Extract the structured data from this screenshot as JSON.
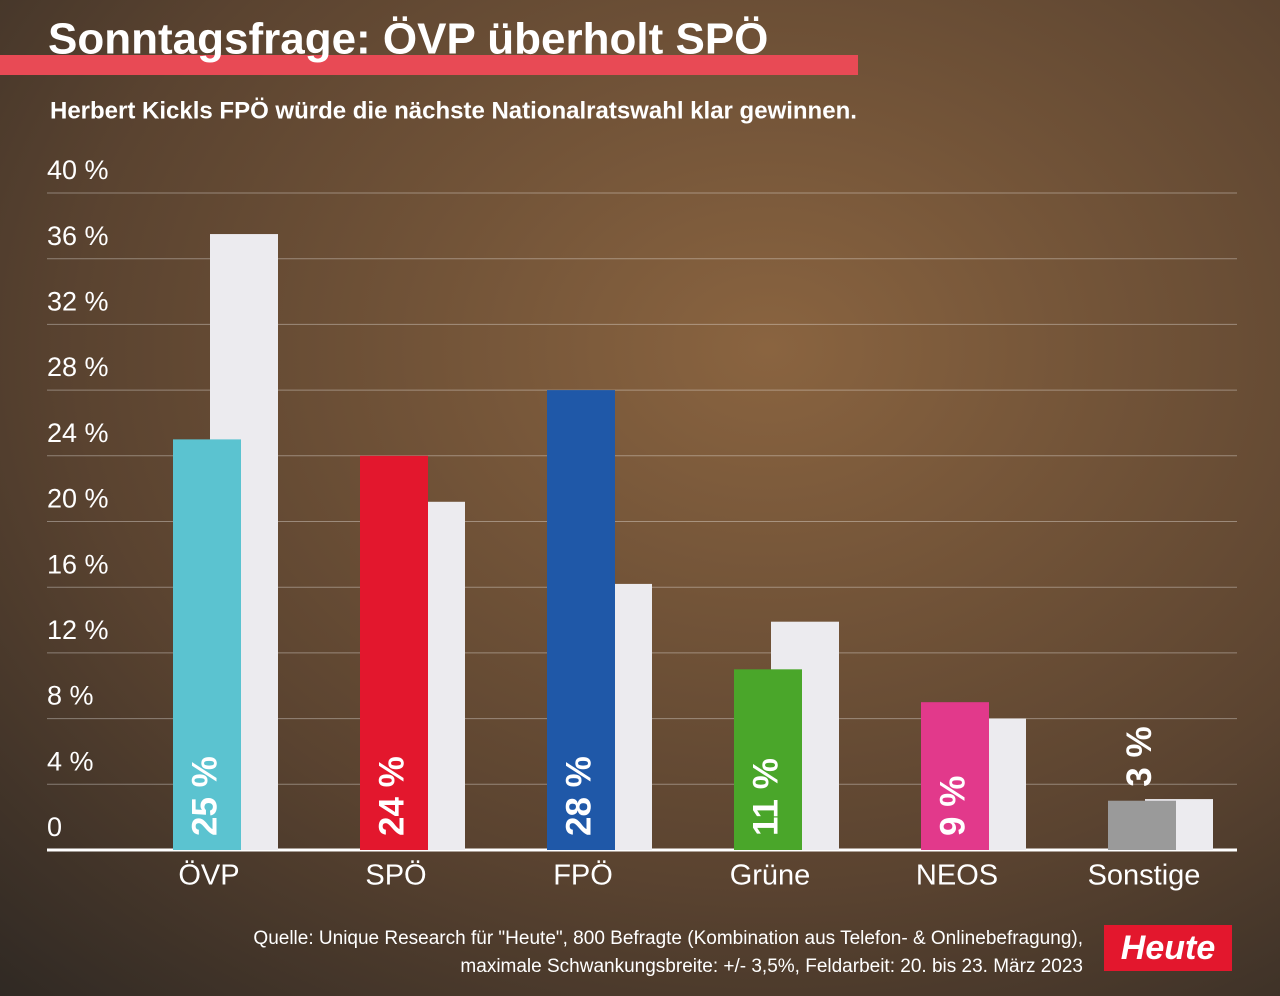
{
  "chart_data": {
    "type": "bar",
    "title": "Sonntagsfrage: ÖVP überholt SPÖ",
    "subtitle": "Herbert Kickls FPÖ würde die nächste Nationalratswahl klar gewinnen.",
    "categories": [
      "ÖVP",
      "SPÖ",
      "FPÖ",
      "Grüne",
      "NEOS",
      "Sonstige"
    ],
    "series": [
      {
        "colors": [
          "#5bc3d0",
          "#e3172d",
          "#1f58a8",
          "#4aa62a",
          "#e2398b",
          "#9a9a9a"
        ],
        "values": [
          25,
          24,
          28,
          11,
          9,
          3
        ],
        "value_labels": [
          "25 %",
          "24 %",
          "28 %",
          "11 %",
          "9 %",
          "3 %"
        ]
      },
      {
        "color": "#ecebef",
        "values": [
          37.5,
          21.2,
          16.2,
          13.9,
          8.0,
          3.1
        ]
      }
    ],
    "ylim": [
      0,
      40
    ],
    "yticks": [
      0,
      {
        "value": 4,
        "label": "4 %"
      },
      {
        "value": 8,
        "label": "8 %"
      },
      {
        "value": 12,
        "label": "12 %"
      },
      {
        "value": 16,
        "label": "16 %"
      },
      {
        "value": 20,
        "label": "20 %"
      },
      {
        "value": 24,
        "label": "24 %"
      },
      {
        "value": 28,
        "label": "28 %"
      },
      {
        "value": 32,
        "label": "32 %"
      },
      {
        "value": 36,
        "label": "36 %"
      },
      {
        "value": 40,
        "label": "40 %"
      }
    ],
    "grid": true,
    "source": [
      "Quelle: Unique Research für \"Heute\", 800 Befragte (Kombination aus Telefon- & Onlinebefragung),",
      "maximale Schwankungsbreite: +/- 3,5%, Feldarbeit: 20. bis 23. März 2023"
    ],
    "logo": "Heute"
  }
}
